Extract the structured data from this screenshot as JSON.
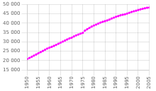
{
  "chart_data": {
    "type": "line",
    "x": [
      1950,
      1951,
      1952,
      1953,
      1954,
      1955,
      1956,
      1957,
      1958,
      1959,
      1960,
      1961,
      1962,
      1963,
      1964,
      1965,
      1966,
      1967,
      1968,
      1969,
      1970,
      1971,
      1972,
      1973,
      1974,
      1975,
      1976,
      1977,
      1978,
      1979,
      1980,
      1981,
      1982,
      1983,
      1984,
      1985,
      1986,
      1987,
      1988,
      1989,
      1990,
      1991,
      1992,
      1993,
      1994,
      1995,
      1996,
      1997,
      1998,
      1999,
      2000,
      2001,
      2002,
      2003,
      2004,
      2005
    ],
    "values": [
      20846,
      21429,
      22034,
      22658,
      23281,
      23904,
      24523,
      25138,
      25770,
      26414,
      26901,
      27348,
      27842,
      28389,
      28970,
      29573,
      30131,
      30706,
      31272,
      31862,
      32241,
      32882,
      33457,
      33910,
      34394,
      34786,
      36020,
      36759,
      37447,
      38124,
      38724,
      39211,
      39762,
      40263,
      40694,
      41056,
      41425,
      41869,
      42449,
      42891,
      43390,
      43748,
      44149,
      44453,
      44708,
      45093,
      45525,
      45954,
      46287,
      46617,
      47008,
      47357,
      47640,
      47925,
      48199,
      48294
    ],
    "color": "#FF00FF",
    "marker": "circle",
    "xlim": [
      1950,
      2005
    ],
    "xticks": [
      1950,
      1955,
      1960,
      1965,
      1970,
      1975,
      1980,
      1985,
      1990,
      1995,
      2000,
      2005
    ],
    "ylim": [
      15000,
      50000
    ],
    "yticks": [
      {
        "value": 15000,
        "label": "15 000"
      },
      {
        "value": 20000,
        "label": "20 000"
      },
      {
        "value": 25000,
        "label": "25 000"
      },
      {
        "value": 30000,
        "label": "30 000"
      },
      {
        "value": 35000,
        "label": "35 000"
      },
      {
        "value": 40000,
        "label": "40 000"
      },
      {
        "value": 45000,
        "label": "45 000"
      },
      {
        "value": 50000,
        "label": "50 000"
      }
    ],
    "grid": true
  }
}
